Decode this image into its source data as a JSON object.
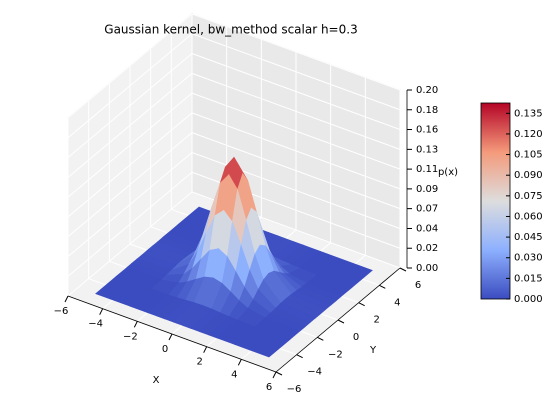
{
  "chart_data": {
    "type": "surface3d",
    "title": "Gaussian kernel, bw_method scalar h=0.3",
    "xlabel": "X",
    "ylabel": "Y",
    "zlabel": "p(x)",
    "xlim": [
      -6,
      6
    ],
    "ylim": [
      -6,
      6
    ],
    "zlim": [
      0,
      0.2
    ],
    "xticks": [
      {
        "value": -6,
        "label": "−6"
      },
      {
        "value": -4,
        "label": "−4"
      },
      {
        "value": -2,
        "label": "−2"
      },
      0,
      2,
      4,
      6
    ],
    "yticks": [
      {
        "value": -6,
        "label": "−6"
      },
      {
        "value": -4,
        "label": "−4"
      },
      {
        "value": -2,
        "label": "−2"
      },
      0,
      2,
      4,
      6
    ],
    "zticks": [
      {
        "value": 0,
        "label": "0.00"
      },
      {
        "value": 0.0222,
        "label": "0.02"
      },
      {
        "value": 0.0444,
        "label": "0.04"
      },
      {
        "value": 0.0667,
        "label": "0.07"
      },
      {
        "value": 0.0889,
        "label": "0.09"
      },
      {
        "value": 0.1111,
        "label": "0.11"
      },
      {
        "value": 0.1333,
        "label": "0.13"
      },
      {
        "value": 0.1556,
        "label": "0.16"
      },
      {
        "value": 0.1778,
        "label": "0.18"
      },
      {
        "value": 0.2,
        "label": "0.20"
      }
    ],
    "colormap": [
      "#3b4cc0",
      "#8db0fe",
      "#dddddd",
      "#f49a7b",
      "#b40426"
    ],
    "colorbar": {
      "lim": [
        0,
        0.1425
      ],
      "ticks": [
        {
          "value": 0,
          "label": "0.000"
        },
        {
          "value": 0.015,
          "label": "0.015"
        },
        {
          "value": 0.03,
          "label": "0.030"
        },
        {
          "value": 0.045,
          "label": "0.045"
        },
        {
          "value": 0.06,
          "label": "0.060"
        },
        {
          "value": 0.075,
          "label": "0.075"
        },
        {
          "value": 0.09,
          "label": "0.090"
        },
        {
          "value": 0.105,
          "label": "0.105"
        },
        {
          "value": 0.12,
          "label": "0.120"
        },
        {
          "value": 0.135,
          "label": "0.135"
        }
      ]
    },
    "grid": true,
    "surface": {
      "x": [
        -5,
        -3,
        -2,
        -1.5,
        -1,
        -0.5,
        0,
        0.5,
        1,
        1.5,
        2,
        3,
        5
      ],
      "y": [
        -5,
        -3,
        -2,
        -1.5,
        -1,
        -0.5,
        0,
        0.5,
        1,
        1.5,
        2,
        3,
        5
      ],
      "z": [
        [
          0,
          0,
          0,
          0,
          0,
          0,
          0,
          0,
          0,
          0,
          0,
          0,
          0
        ],
        [
          0,
          0.0001,
          0.0005,
          0.001,
          0.0017,
          0.0024,
          0.0027,
          0.0024,
          0.0017,
          0.001,
          0.0005,
          0.0001,
          0
        ],
        [
          0,
          0.0005,
          0.0041,
          0.009,
          0.0155,
          0.0216,
          0.0241,
          0.0216,
          0.0155,
          0.009,
          0.0041,
          0.0005,
          0
        ],
        [
          0,
          0.001,
          0.009,
          0.0194,
          0.0335,
          0.0467,
          0.0521,
          0.0467,
          0.0335,
          0.0194,
          0.009,
          0.001,
          0
        ],
        [
          0,
          0.0017,
          0.0155,
          0.0335,
          0.0581,
          0.0808,
          0.0902,
          0.0808,
          0.0581,
          0.0335,
          0.0155,
          0.0017,
          0
        ],
        [
          0,
          0.0024,
          0.0216,
          0.0467,
          0.0808,
          0.1124,
          0.1254,
          0.1124,
          0.0808,
          0.0467,
          0.0216,
          0.0024,
          0
        ],
        [
          0,
          0.0027,
          0.0241,
          0.0521,
          0.0902,
          0.1254,
          0.14,
          0.1254,
          0.0902,
          0.0521,
          0.0241,
          0.0027,
          0
        ],
        [
          0,
          0.0024,
          0.0216,
          0.0467,
          0.0808,
          0.1124,
          0.1254,
          0.1124,
          0.0808,
          0.0467,
          0.0216,
          0.0024,
          0
        ],
        [
          0,
          0.0017,
          0.0155,
          0.0335,
          0.0581,
          0.0808,
          0.0902,
          0.0808,
          0.0581,
          0.0335,
          0.0155,
          0.0017,
          0
        ],
        [
          0,
          0.001,
          0.009,
          0.0194,
          0.0335,
          0.0467,
          0.0521,
          0.0467,
          0.0335,
          0.0194,
          0.009,
          0.001,
          0
        ],
        [
          0,
          0.0005,
          0.0041,
          0.009,
          0.0155,
          0.0216,
          0.0241,
          0.0216,
          0.0155,
          0.009,
          0.0041,
          0.0005,
          0
        ],
        [
          0,
          0.0001,
          0.0005,
          0.001,
          0.0017,
          0.0024,
          0.0027,
          0.0024,
          0.0017,
          0.001,
          0.0005,
          0.0001,
          0
        ],
        [
          0,
          0,
          0,
          0,
          0,
          0,
          0,
          0,
          0,
          0,
          0,
          0,
          0
        ]
      ]
    }
  }
}
